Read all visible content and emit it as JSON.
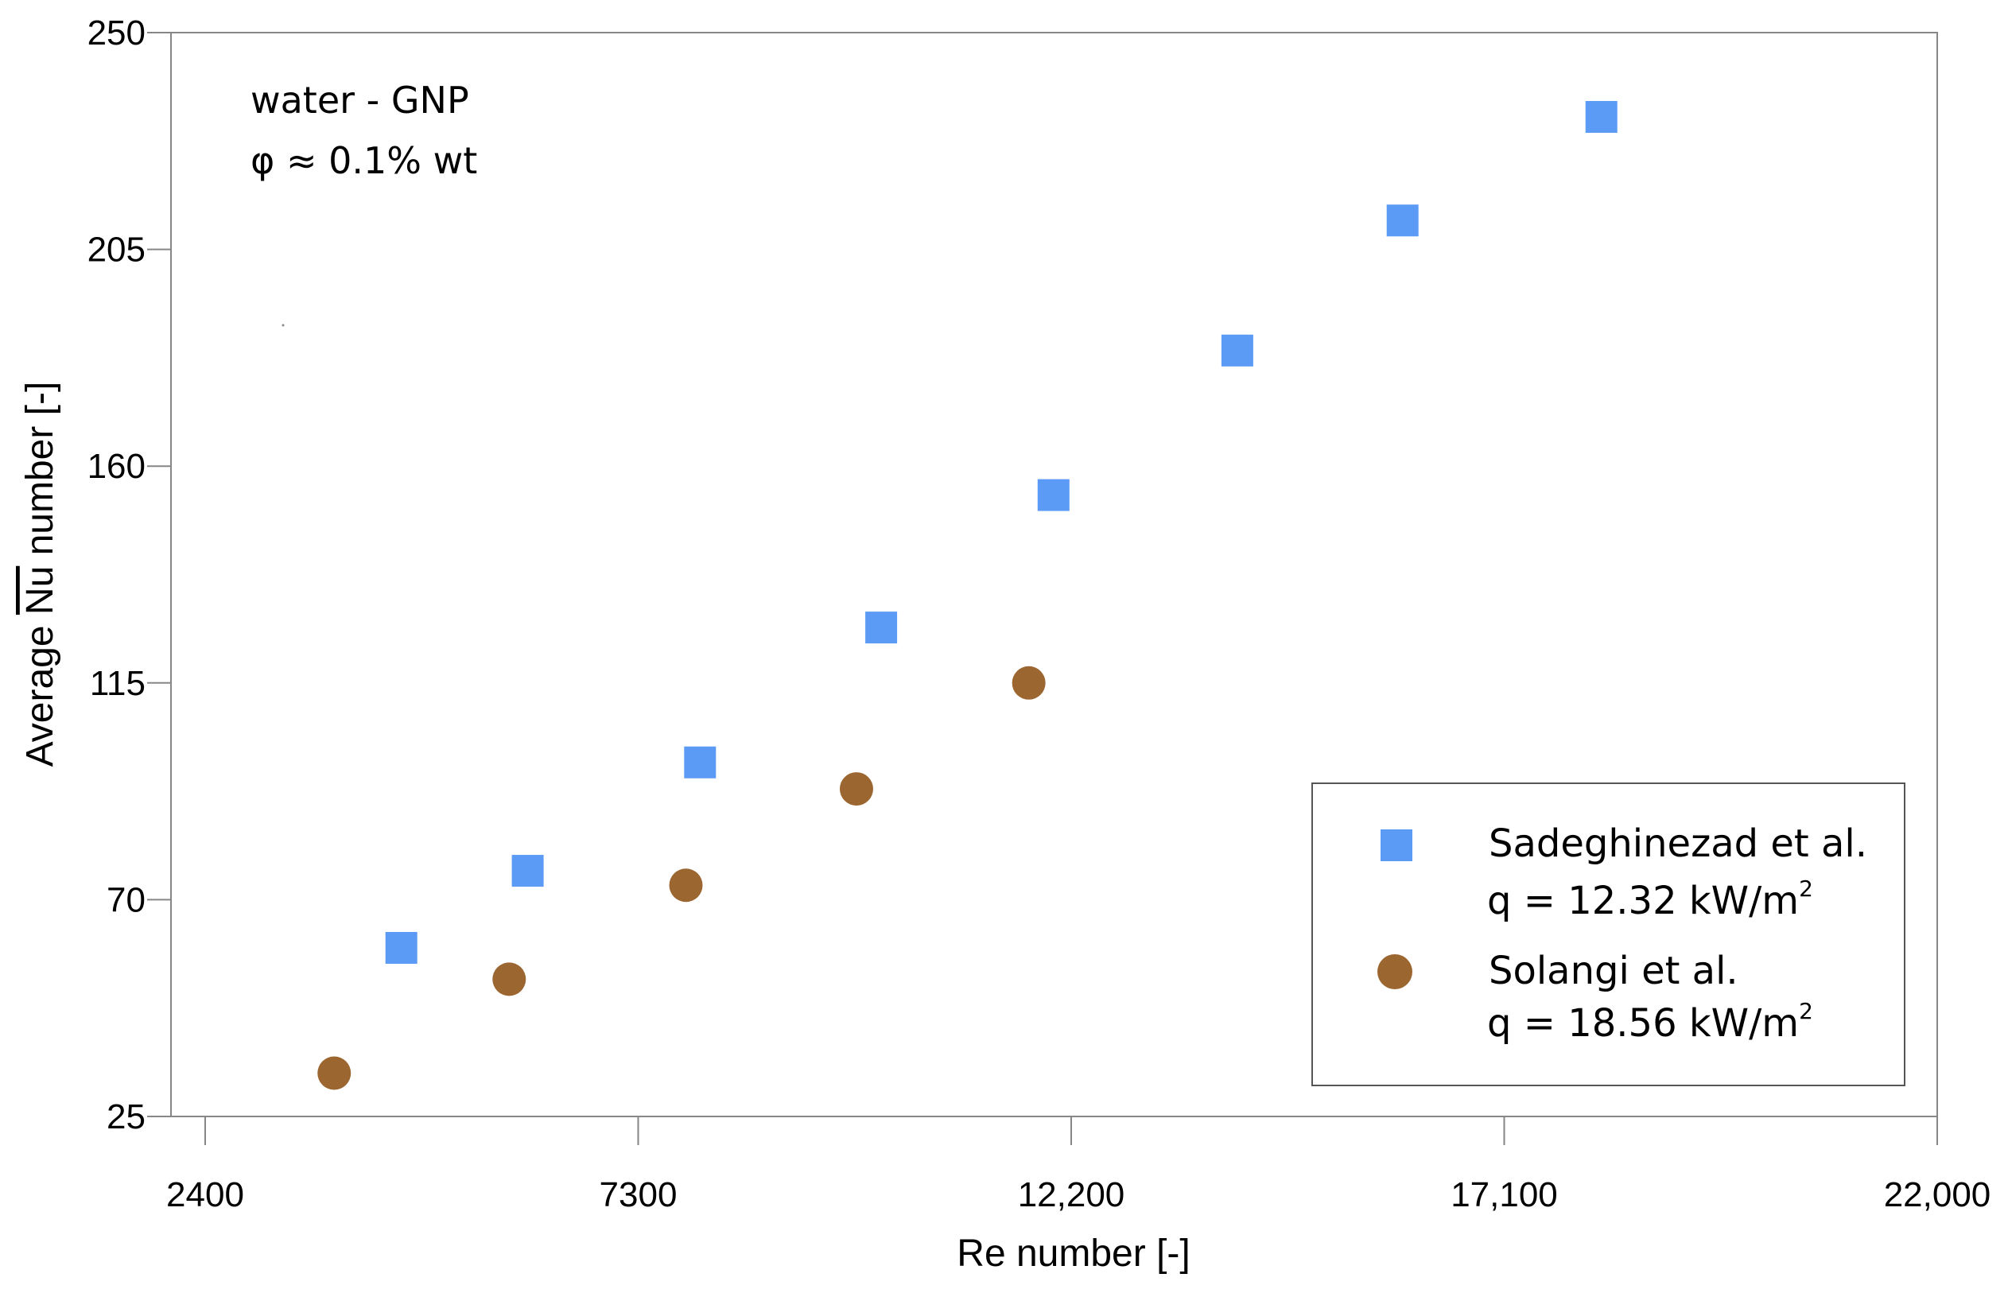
{
  "chart_data": {
    "type": "scatter",
    "title": "",
    "xlabel": "Re number [-]",
    "ylabel_prefix": "Average ",
    "ylabel_symbol": "Nu",
    "ylabel_suffix": " number [-]",
    "xlim": [
      2400,
      22000
    ],
    "ylim": [
      25,
      250
    ],
    "xticks": [
      2400,
      7300,
      12200,
      17100,
      22000
    ],
    "xtick_labels": [
      "2400",
      "7300",
      "12,200",
      "17,100",
      "22,000"
    ],
    "yticks": [
      25,
      70,
      115,
      160,
      205,
      250
    ],
    "ytick_labels": [
      "25",
      "70",
      "115",
      "160",
      "205",
      "250"
    ],
    "grid": false,
    "legend_position": "bottom-right",
    "annotations": [
      "water - GNP",
      "φ ≈ 0.1% wt"
    ],
    "series": [
      {
        "name": "Sadeghinezad et al.",
        "name_line2": "q = 12.32 kW/m",
        "superscript": "2",
        "marker": "square",
        "color": "#5b9bf5",
        "points": [
          {
            "x": 4620,
            "y": 60
          },
          {
            "x": 6050,
            "y": 76
          },
          {
            "x": 8000,
            "y": 98.5
          },
          {
            "x": 10050,
            "y": 126.5
          },
          {
            "x": 12000,
            "y": 154
          },
          {
            "x": 14080,
            "y": 184
          },
          {
            "x": 15950,
            "y": 211
          },
          {
            "x": 18200,
            "y": 232.5
          }
        ]
      },
      {
        "name": "Solangi et al.",
        "name_line2": "q = 18.56 kW/m",
        "superscript": "2",
        "marker": "circle",
        "color": "#9c6630",
        "points": [
          {
            "x": 3860,
            "y": 34
          },
          {
            "x": 5840,
            "y": 53.5
          },
          {
            "x": 7840,
            "y": 73
          },
          {
            "x": 9770,
            "y": 93
          },
          {
            "x": 11720,
            "y": 115
          }
        ]
      }
    ]
  }
}
